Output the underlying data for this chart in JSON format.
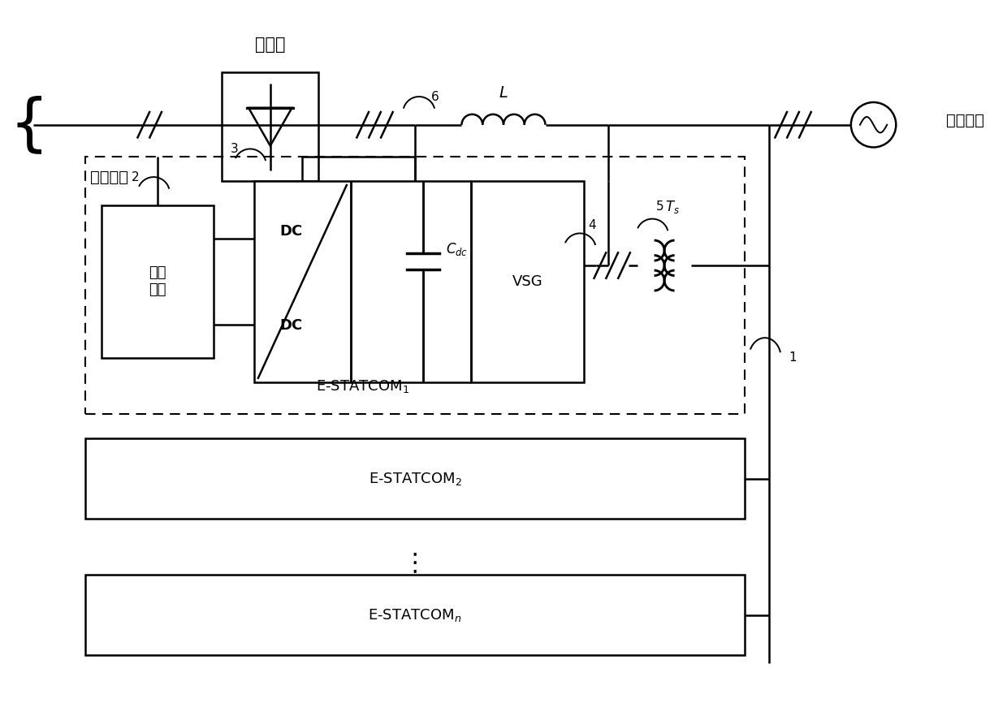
{
  "fig_width": 12.4,
  "fig_height": 8.71,
  "bg_color": "#ffffff",
  "line_color": "#000000",
  "label_nibianzhan": "逆变站",
  "label_zhiliumuxian": "直流母线",
  "label_shouduan": "受端电网",
  "label_chuneng": "储能\n单元",
  "label_DC_top": "DC",
  "label_DC_bottom": "DC",
  "label_Cdc": "$C_{dc}$",
  "label_VSG": "VSG",
  "label_Ts": "$T_s$",
  "label_L": "$L$",
  "label_E1": "E-STATCOM$_1$",
  "label_E2": "E-STATCOM$_2$",
  "label_En": "E-STATCOM$_n$",
  "label_1": "1",
  "label_2": "2",
  "label_3": "3",
  "label_4": "4",
  "label_5": "5",
  "label_6": "6"
}
